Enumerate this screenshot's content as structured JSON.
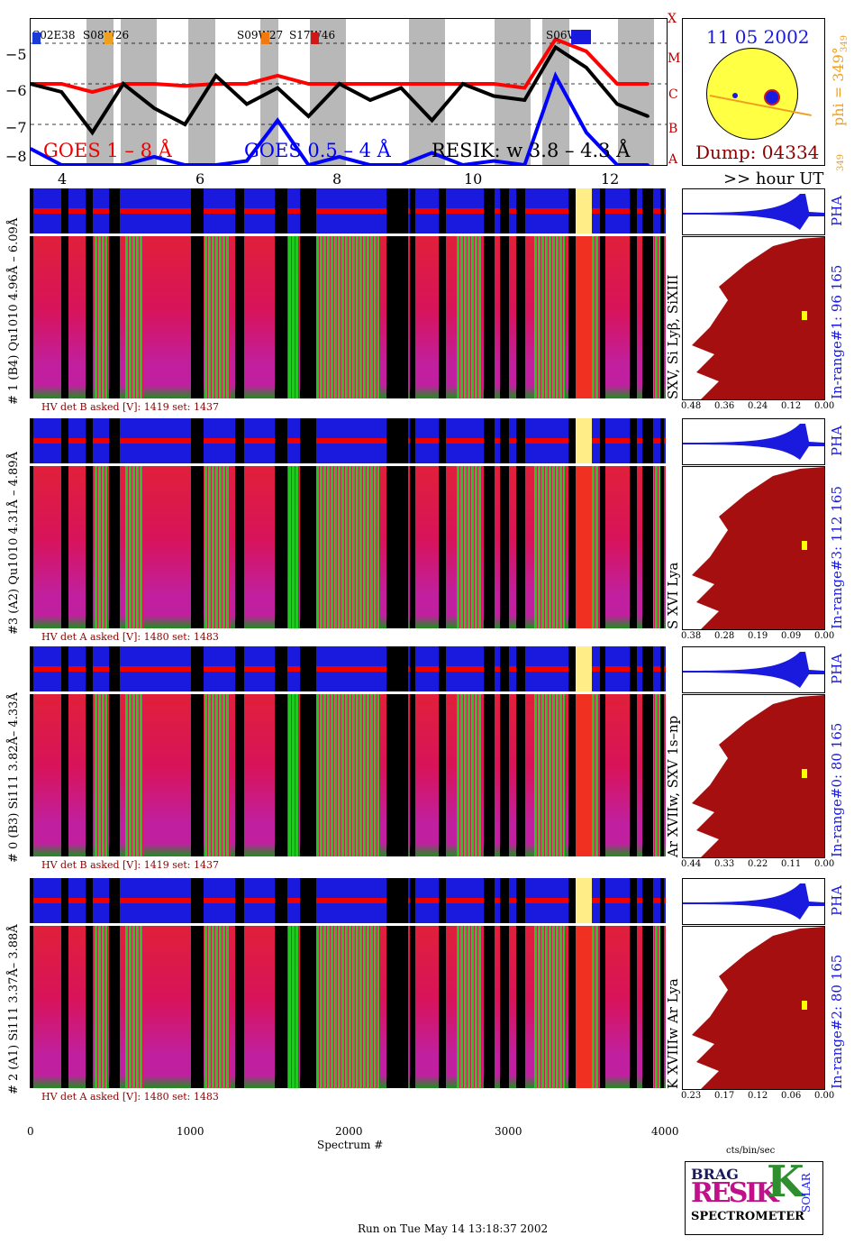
{
  "header": {
    "date": "11 05 2002",
    "phi": "phi = 349°",
    "phi_sup": "349",
    "phi_small": "349",
    "dump": "Dump: 04334",
    "goes_classes": [
      "X",
      "M",
      "C",
      "B",
      "A"
    ],
    "regions": [
      "S02E38",
      "S08W26",
      "S09W27",
      "S17W46",
      "S06W"
    ],
    "legend_goes1": "GOES 1 – 8 Å",
    "legend_goes2": "GOES 0.5 – 4 Å",
    "legend_resik": "RESIK: w 3.8 – 4.3 Å",
    "y_ticks": [
      "−5",
      "−6",
      "−7",
      "−8"
    ],
    "hour_ticks": [
      "4",
      "6",
      "8",
      "10",
      "12"
    ],
    "hour_label": ">> hour UT"
  },
  "colors": {
    "goes_long": "#ff0000",
    "goes_short": "#0000ff",
    "resik": "#000000",
    "sun": "#ffff44",
    "spectrum": "#d8135a",
    "pha": "#1a1adf",
    "pha_hist": "#8b0000",
    "flare_blue": "#0000ff"
  },
  "panels": [
    {
      "ylabel": "# 1 (B4) Qu1010 4.96Å – 6.09Å",
      "hv": "HV det B asked [V]:  1419 set:  1437",
      "lines": "SXV, Si Lyβ, SiXIII",
      "inrange": "In-range#1:  96 165",
      "axis": [
        "0.48",
        "0.36",
        "0.24",
        "0.12",
        "0.00"
      ]
    },
    {
      "ylabel": "#3 (A2) Qu1010 4.31Å – 4.89Å",
      "hv": "HV det A asked [V]:  1480 set:  1483",
      "lines": "S XVI Lya",
      "inrange": "In-range#3:  112 165",
      "axis": [
        "0.38",
        "0.28",
        "0.19",
        "0.09",
        "0.00"
      ]
    },
    {
      "ylabel": "# 0 (B3) Si111  3.82Å– 4.33Å",
      "hv": "HV det B asked [V]:  1419 set:  1437",
      "lines": "Ar XVIIw,  SXV 1s–np",
      "inrange": "In-range#0:  80 165",
      "axis": [
        "0.44",
        "0.33",
        "0.22",
        "0.11",
        "0.00"
      ]
    },
    {
      "ylabel": "# 2 (A1) Si111  3.37Å– 3.88Å",
      "hv": "HV det A asked [V]:  1480 set:  1483",
      "lines": "K XVIIIw  Ar Lya",
      "inrange": "In-range#2:  80 165",
      "axis": [
        "0.23",
        "0.17",
        "0.12",
        "0.06",
        "0.00"
      ]
    }
  ],
  "pha_label": "PHA",
  "x_axis": {
    "ticks": [
      "0",
      "1000",
      "2000",
      "3000",
      "4000"
    ],
    "label": "Spectrum #"
  },
  "side_axis_unit": "cts/bin/sec",
  "logo": {
    "top": "BRAG",
    "mid": "RESIK",
    "right": "SOLAR",
    "bottom": "SPECTROMETER"
  },
  "footer": "Run on Tue May 14 13:18:37 2002",
  "chart_data": {
    "type": "line",
    "x_unit": "hour UT",
    "x": [
      3.0,
      3.5,
      4.0,
      4.5,
      5.0,
      5.5,
      6.0,
      6.5,
      7.0,
      7.5,
      8.0,
      8.5,
      9.0,
      9.5,
      10.0,
      10.5,
      11.0,
      11.5,
      12.0,
      12.5,
      13.0
    ],
    "series": [
      {
        "name": "GOES 1 – 8 Å",
        "values": [
          -6.0,
          -6.0,
          -6.2,
          -6.0,
          -6.0,
          -6.05,
          -6.0,
          -6.0,
          -5.8,
          -6.0,
          -6.0,
          -6.0,
          -6.0,
          -6.0,
          -6.0,
          -6.0,
          -6.1,
          -4.9,
          -5.2,
          -6.0,
          -6.0
        ]
      },
      {
        "name": "GOES 0.5 – 4 Å",
        "values": [
          -7.6,
          -8.0,
          -8.0,
          -8.0,
          -7.8,
          -8.0,
          -8.0,
          -7.9,
          -6.9,
          -8.0,
          -7.8,
          -8.0,
          -8.0,
          -7.7,
          -8.0,
          -7.9,
          -8.0,
          -5.8,
          -7.2,
          -8.0,
          -8.0
        ]
      },
      {
        "name": "RESIK: w 3.8 – 4.3 Å",
        "values": [
          -6.0,
          -6.2,
          -7.2,
          -6.0,
          -6.6,
          -7.0,
          -5.8,
          -6.5,
          -6.1,
          -6.8,
          -6.0,
          -6.4,
          -6.1,
          -6.9,
          -6.0,
          -6.3,
          -6.4,
          -5.1,
          -5.6,
          -6.5,
          -6.8
        ]
      }
    ],
    "ylim": [
      -8,
      -4.4
    ],
    "xlim": [
      3.0,
      13.3
    ]
  }
}
